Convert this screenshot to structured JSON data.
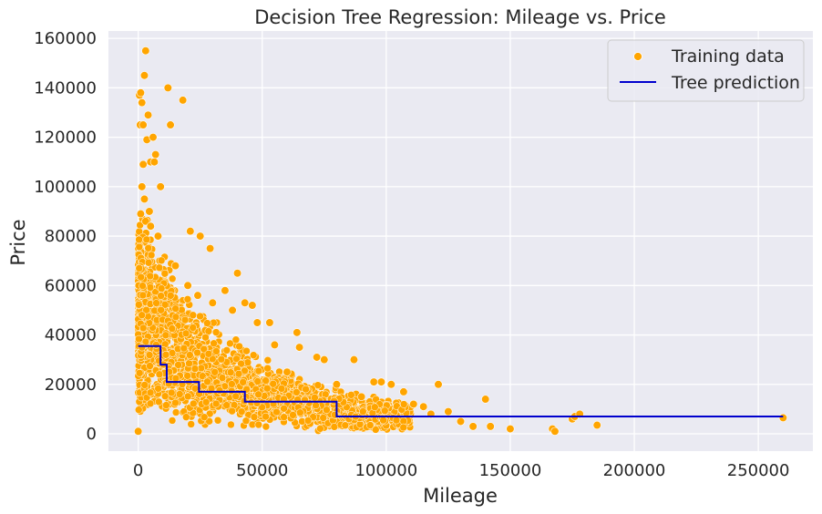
{
  "chart_data": {
    "type": "scatter",
    "title": "Decision Tree Regression: Mileage vs. Price",
    "xlabel": "Mileage",
    "ylabel": "Price",
    "xlim": [
      -12000,
      272000
    ],
    "ylim": [
      -7000,
      163000
    ],
    "xticks": [
      0,
      50000,
      100000,
      150000,
      200000,
      250000
    ],
    "yticks": [
      0,
      20000,
      40000,
      60000,
      80000,
      100000,
      120000,
      140000,
      160000
    ],
    "grid": true,
    "legend_position": "top-right",
    "colors": {
      "background": "#eaeaf2",
      "grid": "#ffffff",
      "points": "#ffa500",
      "line": "#0000cd"
    },
    "series": [
      {
        "name": "Training data",
        "kind": "scatter",
        "points": [
          [
            500,
            137000
          ],
          [
            1000,
            138000
          ],
          [
            1500,
            134000
          ],
          [
            800,
            125000
          ],
          [
            2000,
            125000
          ],
          [
            3000,
            155000
          ],
          [
            2500,
            145000
          ],
          [
            4000,
            129000
          ],
          [
            3500,
            119000
          ],
          [
            6000,
            120000
          ],
          [
            7000,
            113000
          ],
          [
            5000,
            110000
          ],
          [
            6500,
            110000
          ],
          [
            2000,
            109000
          ],
          [
            9000,
            100000
          ],
          [
            12000,
            140000
          ],
          [
            18000,
            135000
          ],
          [
            13000,
            125000
          ],
          [
            1500,
            100000
          ],
          [
            2500,
            95000
          ],
          [
            1000,
            89000
          ],
          [
            3000,
            86000
          ],
          [
            5000,
            84000
          ],
          [
            8000,
            80000
          ],
          [
            4500,
            90000
          ],
          [
            21000,
            82000
          ],
          [
            25000,
            80000
          ],
          [
            29000,
            75000
          ],
          [
            40000,
            65000
          ],
          [
            43000,
            53000
          ],
          [
            46000,
            52000
          ],
          [
            48000,
            45000
          ],
          [
            53000,
            45000
          ],
          [
            55000,
            36000
          ],
          [
            64000,
            41000
          ],
          [
            65000,
            35000
          ],
          [
            72000,
            31000
          ],
          [
            75000,
            30000
          ],
          [
            87000,
            30000
          ],
          [
            95000,
            21000
          ],
          [
            98000,
            21000
          ],
          [
            102000,
            20000
          ],
          [
            107000,
            17000
          ],
          [
            111000,
            12000
          ],
          [
            115000,
            11000
          ],
          [
            121000,
            20000
          ],
          [
            125000,
            9000
          ],
          [
            130000,
            5000
          ],
          [
            135000,
            3000
          ],
          [
            140000,
            14000
          ],
          [
            142000,
            3000
          ],
          [
            150000,
            2000
          ],
          [
            167000,
            2000
          ],
          [
            168000,
            1000
          ],
          [
            175000,
            6000
          ],
          [
            176000,
            7000
          ],
          [
            178000,
            8000
          ],
          [
            185000,
            3500
          ],
          [
            260000,
            6500
          ],
          [
            0,
            1000
          ],
          [
            15000,
            68000
          ],
          [
            20000,
            60000
          ],
          [
            24000,
            56000
          ],
          [
            30000,
            53000
          ],
          [
            35000,
            58000
          ],
          [
            38000,
            50000
          ],
          [
            60000,
            25000
          ],
          [
            80000,
            20000
          ],
          [
            90000,
            15000
          ],
          [
            118000,
            8000
          ]
        ]
      },
      {
        "name": "Tree prediction",
        "kind": "step",
        "points": [
          [
            0,
            35500
          ],
          [
            9000,
            35500
          ],
          [
            9000,
            28000
          ],
          [
            11500,
            28000
          ],
          [
            11500,
            21000
          ],
          [
            24500,
            21000
          ],
          [
            24500,
            17000
          ],
          [
            43000,
            17000
          ],
          [
            43000,
            13000
          ],
          [
            80000,
            13000
          ],
          [
            80000,
            7000
          ],
          [
            260000,
            7000
          ]
        ]
      }
    ]
  }
}
